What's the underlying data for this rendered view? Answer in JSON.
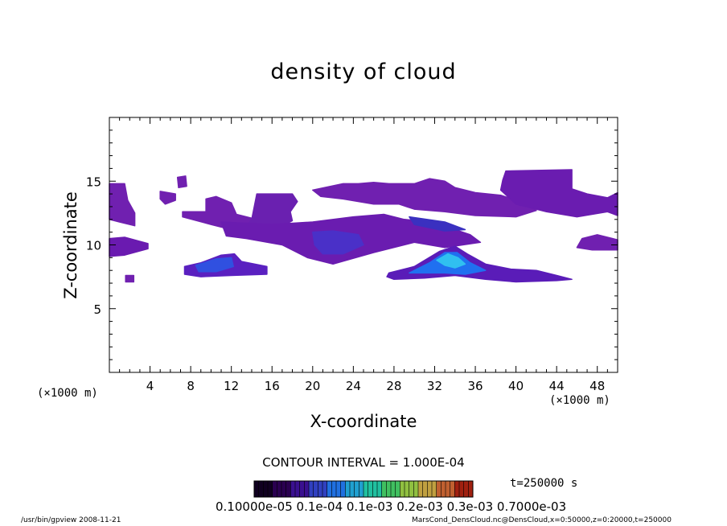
{
  "chart_data": {
    "type": "heatmap",
    "title": "density of cloud",
    "xlabel": "X-coordinate",
    "ylabel": "Z-coordinate",
    "x_unit_label": "(×1000 m)",
    "xlim": [
      0,
      50
    ],
    "ylim": [
      0,
      20
    ],
    "x_ticks": [
      4,
      8,
      12,
      16,
      20,
      24,
      28,
      32,
      36,
      40,
      44,
      48
    ],
    "y_ticks": [
      5,
      10,
      15
    ],
    "contour_interval_label": "CONTOUR INTERVAL = 1.000E-04",
    "time_label": "t=250000 s",
    "colorbar_labels_text": "0.10000e-05 0.1e-04 0.1e-03 0.2e-03 0.3e-03 0.7000e-03",
    "colorbar_colors": [
      "#100020",
      "#2a0050",
      "#3a1090",
      "#3040c0",
      "#2070e0",
      "#20a0d0",
      "#20c0a0",
      "#40c060",
      "#90c040",
      "#c0a040",
      "#c06030",
      "#a02010"
    ],
    "regions": [
      {
        "name": "left-edge-upper",
        "points": [
          [
            0,
            14.8
          ],
          [
            1.5,
            14.8
          ],
          [
            1.8,
            13.5
          ],
          [
            2.5,
            12.5
          ],
          [
            2.5,
            11.5
          ],
          [
            1,
            11.8
          ],
          [
            0,
            12
          ]
        ],
        "fill": "#7020b0"
      },
      {
        "name": "left-edge-lower",
        "points": [
          [
            0,
            10.5
          ],
          [
            1.5,
            10.6
          ],
          [
            3.8,
            10.1
          ],
          [
            3.8,
            9.7
          ],
          [
            1.5,
            9.2
          ],
          [
            0,
            9.1
          ]
        ],
        "fill": "#6a1ab0"
      },
      {
        "name": "left-small-a",
        "points": [
          [
            1.6,
            7.6
          ],
          [
            2.4,
            7.6
          ],
          [
            2.4,
            7.1
          ],
          [
            1.6,
            7.1
          ]
        ],
        "fill": "#7020b0"
      },
      {
        "name": "lower-left-blob",
        "points": [
          [
            7.4,
            8.3
          ],
          [
            9,
            8.6
          ],
          [
            11,
            9.2
          ],
          [
            12.3,
            9.3
          ],
          [
            13,
            8.7
          ],
          [
            15.5,
            8.3
          ],
          [
            15.5,
            7.7
          ],
          [
            12,
            7.6
          ],
          [
            9,
            7.5
          ],
          [
            7.4,
            7.7
          ]
        ],
        "fill": "#5a20c0"
      },
      {
        "name": "lower-left-core",
        "points": [
          [
            8.5,
            8.4
          ],
          [
            10.5,
            8.9
          ],
          [
            12,
            9
          ],
          [
            12.2,
            8.3
          ],
          [
            10.5,
            7.9
          ],
          [
            8.8,
            7.9
          ]
        ],
        "fill": "#3050e0"
      },
      {
        "name": "upper-left-blob",
        "points": [
          [
            5,
            14.2
          ],
          [
            6.5,
            14
          ],
          [
            6.5,
            13.5
          ],
          [
            5.5,
            13.2
          ],
          [
            5,
            13.6
          ]
        ],
        "fill": "#7020b0"
      },
      {
        "name": "upper-left-blob2",
        "points": [
          [
            6.7,
            15.3
          ],
          [
            7.5,
            15.4
          ],
          [
            7.6,
            14.6
          ],
          [
            6.8,
            14.5
          ]
        ],
        "fill": "#7020b0"
      },
      {
        "name": "middle-upper-left",
        "points": [
          [
            9.5,
            13.6
          ],
          [
            10.5,
            13.8
          ],
          [
            12,
            13.3
          ],
          [
            12.5,
            12.4
          ],
          [
            14.5,
            12
          ],
          [
            14.5,
            11.5
          ],
          [
            12,
            11.2
          ],
          [
            10,
            11.6
          ],
          [
            7.2,
            12.2
          ],
          [
            7.2,
            12.6
          ],
          [
            9.5,
            12.6
          ]
        ],
        "fill": "#7020b0"
      },
      {
        "name": "central-high",
        "points": [
          [
            14.5,
            14
          ],
          [
            18,
            14
          ],
          [
            18.5,
            13.4
          ],
          [
            17.8,
            12.6
          ],
          [
            18,
            11.9
          ],
          [
            16,
            11
          ],
          [
            13.8,
            10.6
          ],
          [
            13,
            11
          ],
          [
            14,
            12
          ]
        ],
        "fill": "#6a20b0"
      },
      {
        "name": "central-band",
        "points": [
          [
            11,
            11.8
          ],
          [
            16,
            11.6
          ],
          [
            20,
            11.8
          ],
          [
            24,
            12.2
          ],
          [
            27,
            12.4
          ],
          [
            29,
            12
          ],
          [
            32,
            11.8
          ],
          [
            34,
            11.2
          ],
          [
            35.5,
            10.8
          ],
          [
            36.5,
            10.2
          ],
          [
            33,
            9.8
          ],
          [
            30,
            10.2
          ],
          [
            26,
            9.4
          ],
          [
            22,
            8.5
          ],
          [
            19.5,
            9
          ],
          [
            17,
            10
          ],
          [
            13.5,
            10.5
          ],
          [
            11.5,
            10.7
          ]
        ],
        "fill": "#6a1cb0"
      },
      {
        "name": "central-blob-dark",
        "points": [
          [
            20,
            11
          ],
          [
            22,
            11.1
          ],
          [
            24.5,
            10.8
          ],
          [
            25,
            10
          ],
          [
            23,
            9.3
          ],
          [
            21,
            9.3
          ],
          [
            20.2,
            10
          ]
        ],
        "fill": "#4a30c8"
      },
      {
        "name": "upper-middle",
        "points": [
          [
            23,
            14.8
          ],
          [
            24.5,
            14.8
          ],
          [
            26,
            14.9
          ],
          [
            27.5,
            14.8
          ],
          [
            30,
            14.8
          ],
          [
            31.5,
            15.2
          ],
          [
            33,
            15
          ],
          [
            34,
            14.5
          ],
          [
            36,
            14.1
          ],
          [
            38.5,
            13.9
          ],
          [
            40.8,
            13.3
          ],
          [
            42,
            12.7
          ],
          [
            40,
            12.2
          ],
          [
            36,
            12.3
          ],
          [
            33,
            12.6
          ],
          [
            30,
            12.8
          ],
          [
            28.5,
            13.2
          ],
          [
            26,
            13.2
          ],
          [
            23,
            13.6
          ],
          [
            20.8,
            13.8
          ],
          [
            20,
            14.3
          ]
        ],
        "fill": "#7020b0"
      },
      {
        "name": "mid-dark-streak",
        "points": [
          [
            29.5,
            12.2
          ],
          [
            33,
            11.8
          ],
          [
            35,
            11.2
          ],
          [
            33,
            11.1
          ],
          [
            30,
            11.6
          ]
        ],
        "fill": "#3a30c0"
      },
      {
        "name": "lower-right-blob",
        "points": [
          [
            27.5,
            7.8
          ],
          [
            30,
            8.3
          ],
          [
            32.5,
            9.5
          ],
          [
            34,
            9.9
          ],
          [
            35.2,
            9.3
          ],
          [
            37,
            8.5
          ],
          [
            39.5,
            8.1
          ],
          [
            42,
            8
          ],
          [
            44,
            7.6
          ],
          [
            45.5,
            7.3
          ],
          [
            44,
            7.2
          ],
          [
            40,
            7.1
          ],
          [
            37,
            7.3
          ],
          [
            34,
            7.6
          ],
          [
            31,
            7.4
          ],
          [
            28,
            7.3
          ],
          [
            27.3,
            7.5
          ]
        ],
        "fill": "#5a1cb8"
      },
      {
        "name": "lower-right-core",
        "points": [
          [
            29.5,
            7.8
          ],
          [
            31.5,
            8.6
          ],
          [
            33,
            9.4
          ],
          [
            34.2,
            9.4
          ],
          [
            35.5,
            8.6
          ],
          [
            37,
            8
          ],
          [
            35,
            7.7
          ],
          [
            33,
            7.8
          ],
          [
            31,
            7.8
          ]
        ],
        "fill": "#2070f0"
      },
      {
        "name": "lower-right-bright",
        "points": [
          [
            32.2,
            8.8
          ],
          [
            33.3,
            9.3
          ],
          [
            34.3,
            9
          ],
          [
            35,
            8.5
          ],
          [
            34,
            8.2
          ],
          [
            33,
            8.4
          ]
        ],
        "fill": "#30c0f0"
      },
      {
        "name": "upper-right-box",
        "points": [
          [
            39,
            15.8
          ],
          [
            45.5,
            15.9
          ],
          [
            45.5,
            14.4
          ],
          [
            47,
            14
          ],
          [
            49,
            13.7
          ],
          [
            50,
            14.1
          ],
          [
            50,
            12.3
          ],
          [
            49,
            12.6
          ],
          [
            46,
            12.2
          ],
          [
            43,
            12.6
          ],
          [
            40,
            13.2
          ],
          [
            38.5,
            14.3
          ],
          [
            38.7,
            15.1
          ]
        ],
        "fill": "#6a1cb0"
      },
      {
        "name": "right-dots",
        "points": [
          [
            46.5,
            10.5
          ],
          [
            48,
            10.8
          ],
          [
            50,
            10.4
          ],
          [
            50,
            9.6
          ],
          [
            47.5,
            9.6
          ],
          [
            46,
            9.8
          ]
        ],
        "fill": "#7020b0"
      }
    ]
  },
  "footer": {
    "left": "/usr/bin/gpview   2008-11-21",
    "right": "MarsCond_DensCloud.nc@DensCloud,x=0:50000,z=0:20000,t=250000"
  }
}
